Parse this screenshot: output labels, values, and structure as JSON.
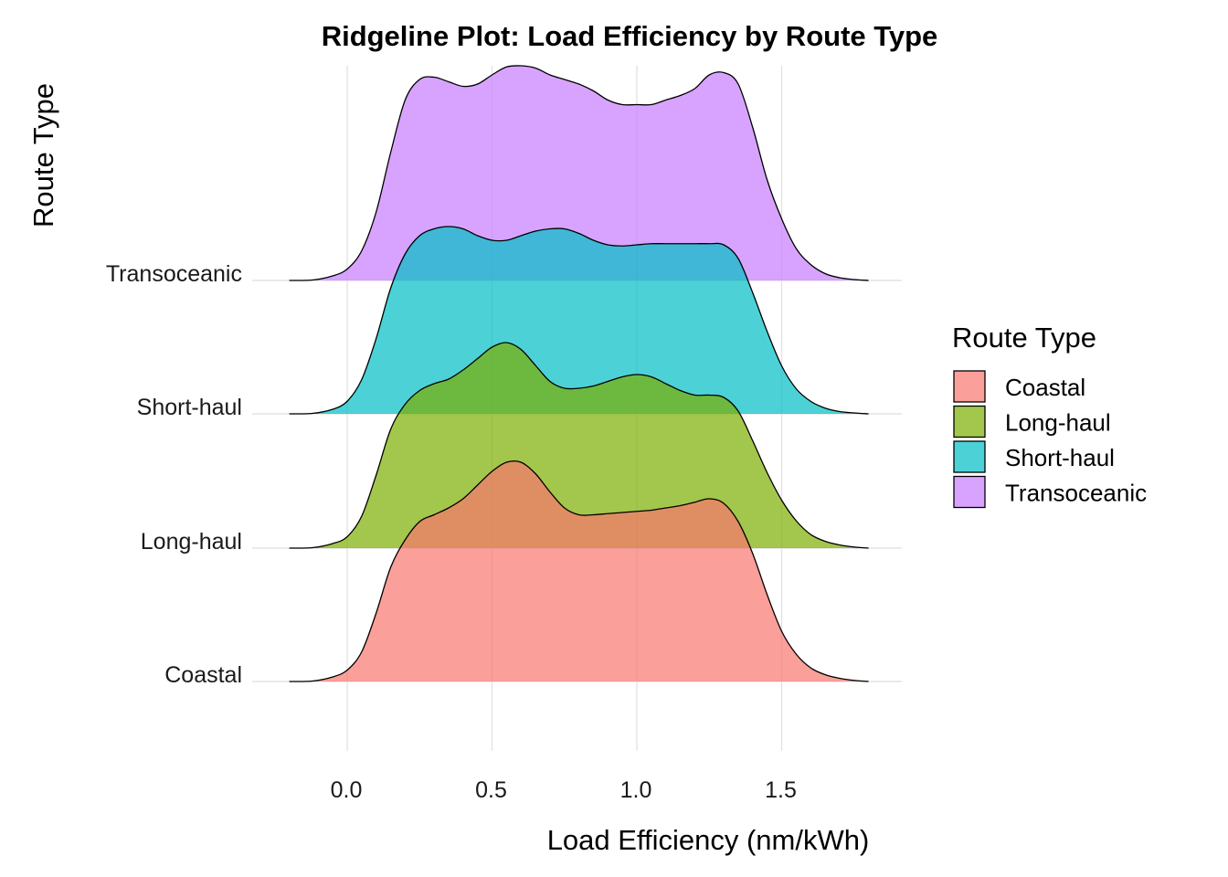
{
  "chart_data": {
    "type": "ridgeline",
    "title": "Ridgeline Plot: Load Efficiency by Route Type",
    "xlabel": "Load Efficiency (nm/kWh)",
    "ylabel": "Route Type",
    "xlim": [
      -0.2,
      1.8
    ],
    "x_ticks": [
      "0.0",
      "0.5",
      "1.0",
      "1.5"
    ],
    "x_tick_values": [
      0.0,
      0.5,
      1.0,
      1.5
    ],
    "grid": true,
    "legend": {
      "title": "Route Type",
      "position": "right"
    },
    "series": [
      {
        "name": "Coastal",
        "color": "#F8766D",
        "density": [
          [
            -0.2,
            0.0
          ],
          [
            -0.12,
            0.002
          ],
          [
            -0.05,
            0.02
          ],
          [
            0.0,
            0.05
          ],
          [
            0.05,
            0.13
          ],
          [
            0.1,
            0.3
          ],
          [
            0.15,
            0.5
          ],
          [
            0.2,
            0.62
          ],
          [
            0.25,
            0.7
          ],
          [
            0.3,
            0.73
          ],
          [
            0.35,
            0.76
          ],
          [
            0.4,
            0.8
          ],
          [
            0.45,
            0.86
          ],
          [
            0.5,
            0.92
          ],
          [
            0.55,
            0.96
          ],
          [
            0.6,
            0.96
          ],
          [
            0.65,
            0.91
          ],
          [
            0.7,
            0.83
          ],
          [
            0.75,
            0.76
          ],
          [
            0.8,
            0.73
          ],
          [
            0.85,
            0.73
          ],
          [
            0.9,
            0.735
          ],
          [
            0.95,
            0.74
          ],
          [
            1.0,
            0.745
          ],
          [
            1.05,
            0.75
          ],
          [
            1.1,
            0.76
          ],
          [
            1.15,
            0.77
          ],
          [
            1.2,
            0.785
          ],
          [
            1.25,
            0.8
          ],
          [
            1.3,
            0.78
          ],
          [
            1.35,
            0.7
          ],
          [
            1.4,
            0.56
          ],
          [
            1.45,
            0.38
          ],
          [
            1.5,
            0.22
          ],
          [
            1.55,
            0.12
          ],
          [
            1.6,
            0.06
          ],
          [
            1.65,
            0.03
          ],
          [
            1.7,
            0.014
          ],
          [
            1.75,
            0.005
          ],
          [
            1.8,
            0.0
          ]
        ]
      },
      {
        "name": "Long-haul",
        "color": "#7CAE00",
        "density": [
          [
            -0.2,
            0.0
          ],
          [
            -0.12,
            0.002
          ],
          [
            -0.05,
            0.02
          ],
          [
            0.0,
            0.05
          ],
          [
            0.05,
            0.14
          ],
          [
            0.1,
            0.32
          ],
          [
            0.15,
            0.52
          ],
          [
            0.2,
            0.63
          ],
          [
            0.25,
            0.69
          ],
          [
            0.3,
            0.72
          ],
          [
            0.35,
            0.74
          ],
          [
            0.4,
            0.78
          ],
          [
            0.45,
            0.83
          ],
          [
            0.5,
            0.88
          ],
          [
            0.55,
            0.9
          ],
          [
            0.6,
            0.87
          ],
          [
            0.65,
            0.8
          ],
          [
            0.7,
            0.73
          ],
          [
            0.75,
            0.7
          ],
          [
            0.8,
            0.7
          ],
          [
            0.85,
            0.71
          ],
          [
            0.9,
            0.73
          ],
          [
            0.95,
            0.75
          ],
          [
            1.0,
            0.76
          ],
          [
            1.05,
            0.75
          ],
          [
            1.1,
            0.72
          ],
          [
            1.15,
            0.69
          ],
          [
            1.2,
            0.67
          ],
          [
            1.25,
            0.67
          ],
          [
            1.3,
            0.66
          ],
          [
            1.35,
            0.6
          ],
          [
            1.4,
            0.47
          ],
          [
            1.45,
            0.33
          ],
          [
            1.5,
            0.21
          ],
          [
            1.55,
            0.12
          ],
          [
            1.6,
            0.06
          ],
          [
            1.65,
            0.03
          ],
          [
            1.7,
            0.014
          ],
          [
            1.75,
            0.005
          ],
          [
            1.8,
            0.0
          ]
        ]
      },
      {
        "name": "Short-haul",
        "color": "#00BFC4",
        "density": [
          [
            -0.2,
            0.0
          ],
          [
            -0.12,
            0.002
          ],
          [
            -0.05,
            0.02
          ],
          [
            0.0,
            0.055
          ],
          [
            0.05,
            0.15
          ],
          [
            0.1,
            0.33
          ],
          [
            0.15,
            0.55
          ],
          [
            0.2,
            0.7
          ],
          [
            0.25,
            0.78
          ],
          [
            0.3,
            0.81
          ],
          [
            0.35,
            0.82
          ],
          [
            0.4,
            0.81
          ],
          [
            0.45,
            0.78
          ],
          [
            0.5,
            0.76
          ],
          [
            0.55,
            0.76
          ],
          [
            0.6,
            0.78
          ],
          [
            0.65,
            0.8
          ],
          [
            0.7,
            0.81
          ],
          [
            0.75,
            0.81
          ],
          [
            0.8,
            0.79
          ],
          [
            0.85,
            0.76
          ],
          [
            0.9,
            0.74
          ],
          [
            0.95,
            0.735
          ],
          [
            1.0,
            0.74
          ],
          [
            1.05,
            0.745
          ],
          [
            1.1,
            0.745
          ],
          [
            1.15,
            0.745
          ],
          [
            1.2,
            0.745
          ],
          [
            1.25,
            0.745
          ],
          [
            1.3,
            0.74
          ],
          [
            1.35,
            0.68
          ],
          [
            1.4,
            0.53
          ],
          [
            1.45,
            0.36
          ],
          [
            1.5,
            0.21
          ],
          [
            1.55,
            0.11
          ],
          [
            1.6,
            0.055
          ],
          [
            1.65,
            0.025
          ],
          [
            1.7,
            0.01
          ],
          [
            1.75,
            0.004
          ],
          [
            1.8,
            0.0
          ]
        ]
      },
      {
        "name": "Transoceanic",
        "color": "#C77CFF",
        "density": [
          [
            -0.2,
            0.0
          ],
          [
            -0.12,
            0.002
          ],
          [
            -0.05,
            0.02
          ],
          [
            0.0,
            0.05
          ],
          [
            0.05,
            0.13
          ],
          [
            0.1,
            0.3
          ],
          [
            0.15,
            0.56
          ],
          [
            0.2,
            0.79
          ],
          [
            0.25,
            0.88
          ],
          [
            0.3,
            0.89
          ],
          [
            0.35,
            0.87
          ],
          [
            0.4,
            0.85
          ],
          [
            0.45,
            0.86
          ],
          [
            0.5,
            0.9
          ],
          [
            0.55,
            0.935
          ],
          [
            0.6,
            0.94
          ],
          [
            0.65,
            0.93
          ],
          [
            0.7,
            0.9
          ],
          [
            0.75,
            0.88
          ],
          [
            0.8,
            0.86
          ],
          [
            0.85,
            0.83
          ],
          [
            0.9,
            0.79
          ],
          [
            0.95,
            0.77
          ],
          [
            1.0,
            0.77
          ],
          [
            1.05,
            0.77
          ],
          [
            1.1,
            0.79
          ],
          [
            1.15,
            0.81
          ],
          [
            1.2,
            0.84
          ],
          [
            1.25,
            0.9
          ],
          [
            1.3,
            0.91
          ],
          [
            1.35,
            0.86
          ],
          [
            1.4,
            0.67
          ],
          [
            1.45,
            0.44
          ],
          [
            1.5,
            0.27
          ],
          [
            1.55,
            0.14
          ],
          [
            1.6,
            0.07
          ],
          [
            1.65,
            0.03
          ],
          [
            1.7,
            0.012
          ],
          [
            1.75,
            0.004
          ],
          [
            1.8,
            0.0
          ]
        ]
      }
    ]
  }
}
